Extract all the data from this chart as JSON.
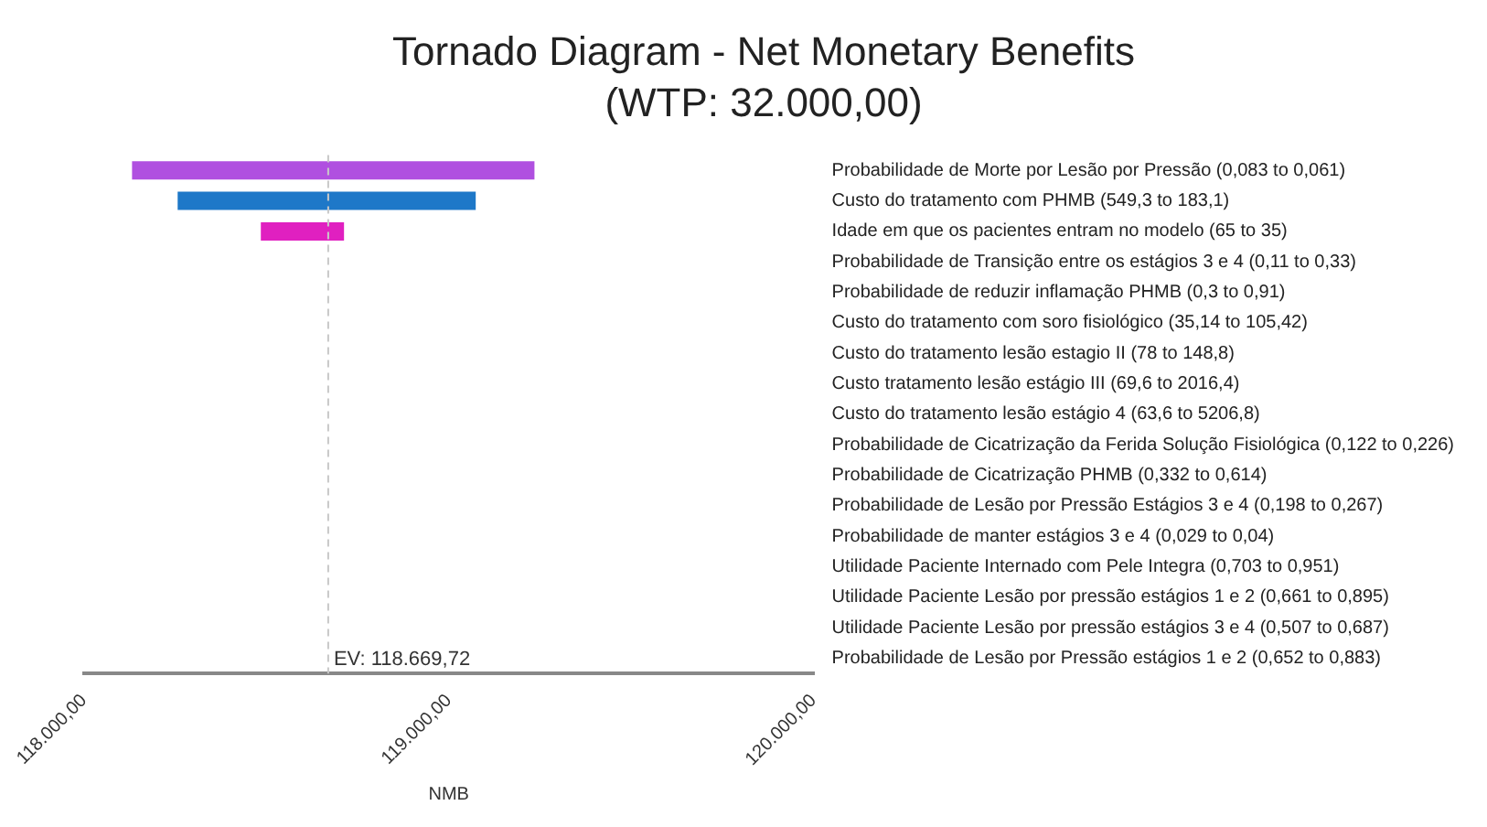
{
  "chart_data": {
    "type": "bar",
    "orientation": "horizontal",
    "title": "Tornado Diagram - Net Monetary Benefits",
    "subtitle": "(WTP: 32.000,00)",
    "xlabel": "NMB",
    "categories": [
      "Probabilidade de Morte por Lesão por Pressão (0,083 to 0,061)",
      "Custo do tratamento com PHMB (549,3 to 183,1)",
      "Idade em que os pacientes entram no modelo (65 to 35)",
      "Probabilidade de Transição entre os estágios 3 e 4 (0,11 to 0,33)",
      "Probabilidade de reduzir inflamação PHMB (0,3 to 0,91)",
      "Custo do tratamento com soro fisiológico (35,14 to 105,42)",
      "Custo do tratamento lesão estagio II (78 to 148,8)",
      "Custo tratamento lesão estágio III (69,6 to 2016,4)",
      "Custo do tratamento lesão estágio 4 (63,6 to 5206,8)",
      "Probabilidade de Cicatrização da Ferida Solução Fisiológica (0,122 to 0,226)",
      "Probabilidade de Cicatrização PHMB (0,332 to 0,614)",
      "Probabilidade de Lesão por Pressão Estágios 3 e 4 (0,198 to 0,267)",
      "Probabilidade de manter estágios 3 e 4 (0,029 to 0,04)",
      "Utilidade Paciente Internado com Pele Integra (0,703 to 0,951)",
      "Utilidade Paciente Lesão por pressão estágios 1 e 2 (0,661 to 0,895)",
      "Utilidade Paciente Lesão por pressão estágios 3 e 4 (0,507 to 0,687)",
      "Probabilidade de Lesão por Pressão estágios 1 e 2 (0,652 to 0,883)"
    ],
    "values": [
      1103,
      817,
      228,
      null,
      null,
      null,
      null,
      null,
      null,
      null,
      null,
      null,
      null,
      null,
      null,
      null,
      null
    ],
    "base": [
      118132,
      118257,
      118485,
      null,
      null,
      null,
      null,
      null,
      null,
      null,
      null,
      null,
      null,
      null,
      null,
      null,
      null
    ],
    "colors": [
      "#b050e0",
      "#1e78c8",
      "#e020c0",
      "#b050e0",
      "#b050e0",
      "#b050e0",
      "#b050e0",
      "#b050e0",
      "#b050e0",
      "#b050e0",
      "#b050e0",
      "#b050e0",
      "#b050e0",
      "#b050e0",
      "#b050e0",
      "#b050e0",
      "#b050e0"
    ],
    "xlim": [
      118000,
      120000
    ],
    "xticks": [
      {
        "value": 118000,
        "label": "118.000,00"
      },
      {
        "value": 119000,
        "label": "119.000,00"
      },
      {
        "value": 120000,
        "label": "120.000,00"
      }
    ],
    "ref_lines": [
      {
        "axis": "x",
        "value": 118669.72,
        "label": "EV: 118.669,72",
        "color": "#c8c8c8",
        "line_style": "dashed"
      }
    ],
    "grid": false,
    "legend": false
  }
}
